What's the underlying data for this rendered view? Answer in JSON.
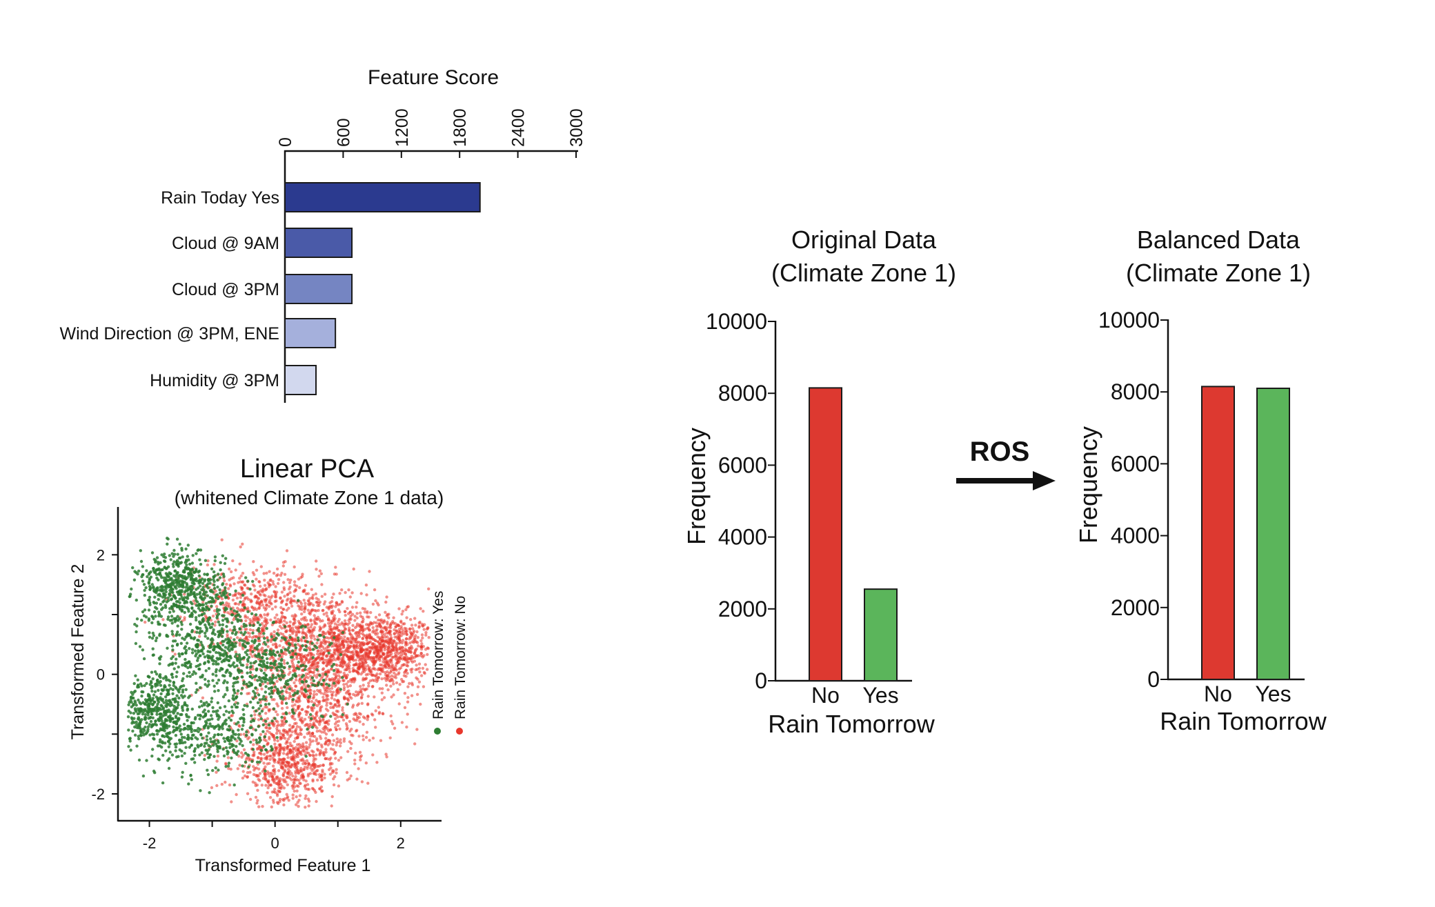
{
  "figure": {
    "ros_label": "ROS"
  },
  "chart_data": [
    {
      "id": "feature_score",
      "type": "bar",
      "orientation": "horizontal",
      "title": "Feature Score",
      "xlim": [
        0,
        3000
      ],
      "xticks": [
        "0",
        "600",
        "1200",
        "1800",
        "2400",
        "3000"
      ],
      "tick_values": [
        0,
        600,
        1200,
        1800,
        2400,
        3000
      ],
      "categories": [
        "Rain Today Yes",
        "Cloud @ 9AM",
        "Cloud @ 3PM",
        "Wind Direction @ 3PM, ENE",
        "Humidity @ 3PM"
      ],
      "values": [
        2010,
        690,
        690,
        520,
        320
      ],
      "colors": [
        "#2b3a8f",
        "#4a5aa8",
        "#7585c2",
        "#a5b0dc",
        "#d2d8ee"
      ]
    },
    {
      "id": "linear_pca",
      "type": "scatter",
      "title": "Linear PCA",
      "subtitle": "(whitened Climate Zone 1 data)",
      "xlabel": "Transformed Feature 1",
      "ylabel": "Transformed Feature 2",
      "xlim": [
        -2.5,
        2.65
      ],
      "ylim": [
        -2.45,
        2.8
      ],
      "xticks": [
        "-2",
        "0",
        "2"
      ],
      "xtick_values": [
        -2,
        0,
        2
      ],
      "yticks": [
        "2",
        "0",
        "-2"
      ],
      "ytick_values": [
        2,
        0,
        -2
      ],
      "series": [
        {
          "name": "Rain Tomorrow: No",
          "color": "#e8372c",
          "clusters": [
            {
              "cx": 1.7,
              "cy": 0.4,
              "sx": 0.45,
              "sy": 0.3,
              "n": 900
            },
            {
              "cx": 0.6,
              "cy": 0.6,
              "sx": 0.6,
              "sy": 0.45,
              "n": 900
            },
            {
              "cx": 0.7,
              "cy": -0.5,
              "sx": 0.6,
              "sy": 0.5,
              "n": 700
            },
            {
              "cx": 0.2,
              "cy": -1.5,
              "sx": 0.45,
              "sy": 0.35,
              "n": 650
            },
            {
              "cx": -0.4,
              "cy": 1.2,
              "sx": 0.5,
              "sy": 0.35,
              "n": 400
            }
          ]
        },
        {
          "name": "Rain Tomorrow: Yes",
          "color": "#2e7d32",
          "clusters": [
            {
              "cx": -1.5,
              "cy": 1.45,
              "sx": 0.35,
              "sy": 0.3,
              "n": 550
            },
            {
              "cx": -1.9,
              "cy": -0.6,
              "sx": 0.3,
              "sy": 0.3,
              "n": 450
            },
            {
              "cx": -1.0,
              "cy": -1.0,
              "sx": 0.45,
              "sy": 0.35,
              "n": 350
            },
            {
              "cx": -1.0,
              "cy": 0.5,
              "sx": 0.5,
              "sy": 0.4,
              "n": 500
            },
            {
              "cx": 0.0,
              "cy": 0.0,
              "sx": 0.5,
              "sy": 0.4,
              "n": 300
            }
          ]
        }
      ]
    },
    {
      "id": "original_data",
      "type": "bar",
      "title": "Original Data",
      "subtitle": "(Climate Zone 1)",
      "xlabel": "Rain Tomorrow",
      "ylabel": "Frequency",
      "ylim": [
        0,
        10000
      ],
      "yticks": [
        "0",
        "2000",
        "4000",
        "6000",
        "8000",
        "10000"
      ],
      "tick_values": [
        0,
        2000,
        4000,
        6000,
        8000,
        10000
      ],
      "categories": [
        "No",
        "Yes"
      ],
      "values": [
        8150,
        2550
      ],
      "colors": [
        "#dd3930",
        "#5bb55b"
      ]
    },
    {
      "id": "balanced_data",
      "type": "bar",
      "title": "Balanced Data",
      "subtitle": "(Climate Zone 1)",
      "xlabel": "Rain Tomorrow",
      "ylabel": "Frequency",
      "ylim": [
        0,
        10000
      ],
      "yticks": [
        "0",
        "2000",
        "4000",
        "6000",
        "8000",
        "10000"
      ],
      "tick_values": [
        0,
        2000,
        4000,
        6000,
        8000,
        10000
      ],
      "categories": [
        "No",
        "Yes"
      ],
      "values": [
        8150,
        8100
      ],
      "colors": [
        "#dd3930",
        "#5bb55b"
      ]
    }
  ]
}
